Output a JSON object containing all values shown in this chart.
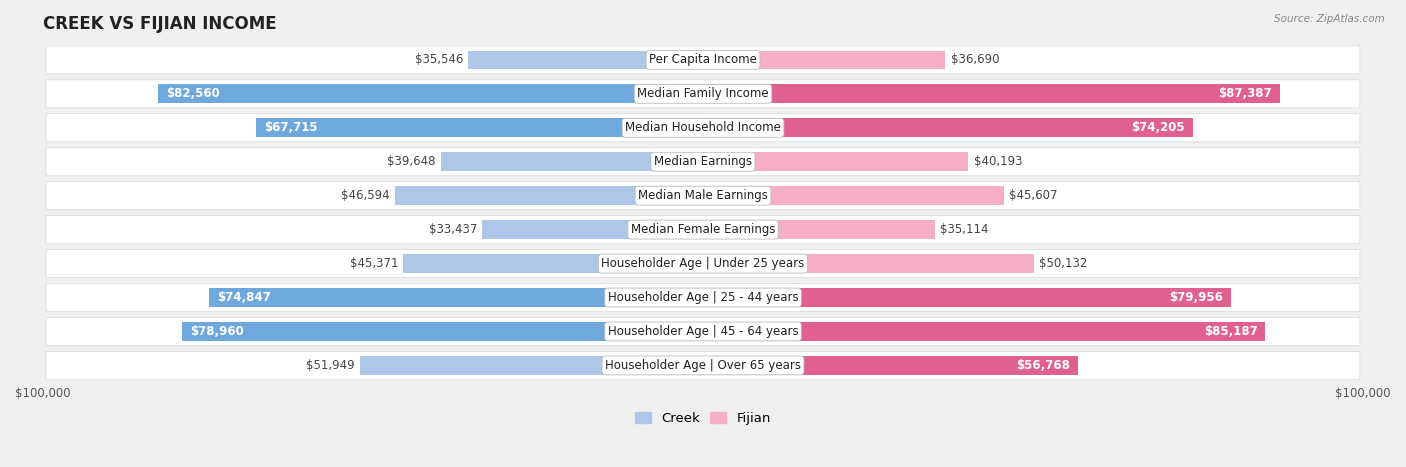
{
  "title": "CREEK VS FIJIAN INCOME",
  "source": "Source: ZipAtlas.com",
  "categories": [
    "Per Capita Income",
    "Median Family Income",
    "Median Household Income",
    "Median Earnings",
    "Median Male Earnings",
    "Median Female Earnings",
    "Householder Age | Under 25 years",
    "Householder Age | 25 - 44 years",
    "Householder Age | 45 - 64 years",
    "Householder Age | Over 65 years"
  ],
  "creek_values": [
    35546,
    82560,
    67715,
    39648,
    46594,
    33437,
    45371,
    74847,
    78960,
    51949
  ],
  "fijian_values": [
    36690,
    87387,
    74205,
    40193,
    45607,
    35114,
    50132,
    79956,
    85187,
    56768
  ],
  "creek_labels": [
    "$35,546",
    "$82,560",
    "$67,715",
    "$39,648",
    "$46,594",
    "$33,437",
    "$45,371",
    "$74,847",
    "$78,960",
    "$51,949"
  ],
  "fijian_labels": [
    "$36,690",
    "$87,387",
    "$74,205",
    "$40,193",
    "$45,607",
    "$35,114",
    "$50,132",
    "$79,956",
    "$85,187",
    "$56,768"
  ],
  "creek_color_light": "#aec6e8",
  "creek_color_dark": "#6fa8dc",
  "fijian_color_light": "#f4afc4",
  "fijian_color_dark": "#e06090",
  "max_value": 100000,
  "fig_bg": "#f0f0f0",
  "row_bg": "#ebebeb",
  "row_border": "#d8d8d8",
  "label_fontsize": 8.5,
  "title_fontsize": 12,
  "legend_fontsize": 9.5,
  "creek_threshold": 55000,
  "fijian_threshold": 55000,
  "cat_label_fontsize": 8.5
}
